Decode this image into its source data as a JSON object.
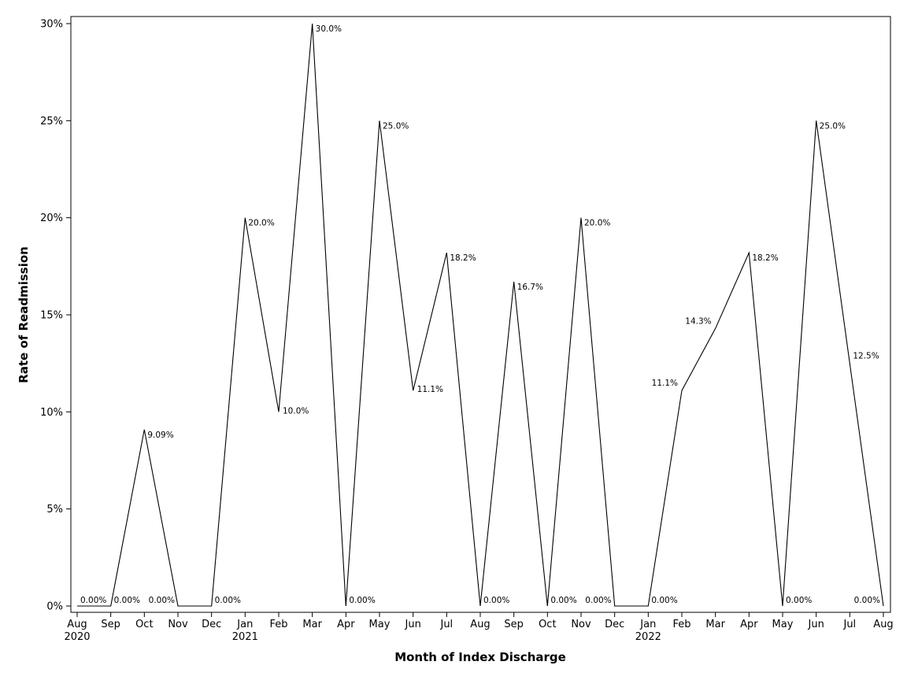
{
  "chart_data": {
    "type": "line",
    "title": "",
    "xlabel": "Month of Index Discharge",
    "ylabel": "Rate of Readmission",
    "ylim": [
      0,
      30
    ],
    "y_ticks": [
      0,
      5,
      10,
      15,
      20,
      25,
      30
    ],
    "y_tick_labels": [
      "0%",
      "5%",
      "10%",
      "15%",
      "20%",
      "25%",
      "30%"
    ],
    "x_tick_labels": [
      "Aug",
      "Sep",
      "Oct",
      "Nov",
      "Dec",
      "Jan",
      "Feb",
      "Mar",
      "Apr",
      "May",
      "Jun",
      "Jul",
      "Aug",
      "Sep",
      "Oct",
      "Nov",
      "Dec",
      "Jan",
      "Feb",
      "Mar",
      "Apr",
      "May",
      "Jun",
      "Jul",
      "Aug"
    ],
    "year_labels": [
      {
        "index": 0,
        "label": "2020"
      },
      {
        "index": 5,
        "label": "2021"
      },
      {
        "index": 17,
        "label": "2022"
      }
    ],
    "grid": false,
    "legend": "none",
    "line_color": "#000000",
    "series": [
      {
        "x": [
          "2020-08",
          "2020-09",
          "2020-10",
          "2020-11",
          "2020-12",
          "2021-01",
          "2021-02",
          "2021-03",
          "2021-04",
          "2021-05",
          "2021-06",
          "2021-07",
          "2021-08",
          "2021-09",
          "2021-10",
          "2021-11",
          "2021-12",
          "2022-01",
          "2022-02",
          "2022-03",
          "2022-04",
          "2022-05",
          "2022-06",
          "2022-07",
          "2022-08"
        ],
        "values": [
          0,
          0,
          9.09,
          0,
          0,
          20.0,
          10.0,
          30.0,
          0,
          25.0,
          11.1,
          18.2,
          0,
          16.7,
          0,
          20.0,
          0,
          0,
          11.1,
          14.3,
          18.2,
          0,
          25.0,
          12.5,
          0
        ],
        "labels": [
          {
            "index": 0,
            "text": "0.00%"
          },
          {
            "index": 1,
            "text": "0.00%"
          },
          {
            "index": 2,
            "text": "9.09%"
          },
          {
            "index": 3,
            "text": "0.00%"
          },
          {
            "index": 4,
            "text": "0.00%"
          },
          {
            "index": 5,
            "text": "20.0%"
          },
          {
            "index": 6,
            "text": "10.0%"
          },
          {
            "index": 7,
            "text": "30.0%"
          },
          {
            "index": 8,
            "text": "0.00%"
          },
          {
            "index": 9,
            "text": "25.0%"
          },
          {
            "index": 10,
            "text": "11.1%"
          },
          {
            "index": 11,
            "text": "18.2%"
          },
          {
            "index": 12,
            "text": "0.00%"
          },
          {
            "index": 13,
            "text": "16.7%"
          },
          {
            "index": 14,
            "text": "0.00%"
          },
          {
            "index": 15,
            "text": "20.0%"
          },
          {
            "index": 16,
            "text": "0.00%"
          },
          {
            "index": 17,
            "text": "0.00%"
          },
          {
            "index": 18,
            "text": "11.1%"
          },
          {
            "index": 19,
            "text": "14.3%"
          },
          {
            "index": 20,
            "text": "18.2%"
          },
          {
            "index": 21,
            "text": "0.00%"
          },
          {
            "index": 22,
            "text": "25.0%"
          },
          {
            "index": 23,
            "text": "12.5%"
          },
          {
            "index": 24,
            "text": "0.00%"
          }
        ]
      }
    ]
  }
}
